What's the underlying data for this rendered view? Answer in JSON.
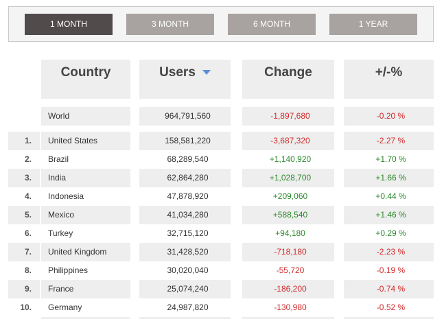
{
  "tabs": [
    {
      "label": "1 MONTH",
      "active": true
    },
    {
      "label": "3 MONTH",
      "active": false
    },
    {
      "label": "6 MONTH",
      "active": false
    },
    {
      "label": "1 YEAR",
      "active": false
    }
  ],
  "columns": {
    "country": "Country",
    "users": "Users",
    "change": "Change",
    "pct": "+/-%"
  },
  "world": {
    "country": "World",
    "users": "964,791,560",
    "change": "-1,897,680",
    "pct": "-0.20 %",
    "trend": "neg"
  },
  "rows": [
    {
      "rank": "1.",
      "country": "United States",
      "users": "158,581,220",
      "change": "-3,687,320",
      "pct": "-2.27 %",
      "trend": "neg"
    },
    {
      "rank": "2.",
      "country": "Brazil",
      "users": "68,289,540",
      "change": "+1,140,920",
      "pct": "+1.70 %",
      "trend": "pos"
    },
    {
      "rank": "3.",
      "country": "India",
      "users": "62,864,280",
      "change": "+1,028,700",
      "pct": "+1.66 %",
      "trend": "pos"
    },
    {
      "rank": "4.",
      "country": "Indonesia",
      "users": "47,878,920",
      "change": "+209,060",
      "pct": "+0.44 %",
      "trend": "pos"
    },
    {
      "rank": "5.",
      "country": "Mexico",
      "users": "41,034,280",
      "change": "+588,540",
      "pct": "+1.46 %",
      "trend": "pos"
    },
    {
      "rank": "6.",
      "country": "Turkey",
      "users": "32,715,120",
      "change": "+94,180",
      "pct": "+0.29 %",
      "trend": "pos"
    },
    {
      "rank": "7.",
      "country": "United Kingdom",
      "users": "31,428,520",
      "change": "-718,180",
      "pct": "-2.23 %",
      "trend": "neg"
    },
    {
      "rank": "8.",
      "country": "Philippines",
      "users": "30,020,040",
      "change": "-55,720",
      "pct": "-0.19 %",
      "trend": "neg"
    },
    {
      "rank": "9.",
      "country": "France",
      "users": "25,074,240",
      "change": "-186,200",
      "pct": "-0.74 %",
      "trend": "neg"
    },
    {
      "rank": "10.",
      "country": "Germany",
      "users": "24,987,820",
      "change": "-130,980",
      "pct": "-0.52 %",
      "trend": "neg"
    }
  ],
  "colors": {
    "positive": "#2c8a2c",
    "negative": "#d12b2b",
    "active_tab": "#524b4b",
    "inactive_tab": "#a8a2a0",
    "sort_arrow": "#5b8fd6"
  },
  "icons": {
    "sort": "sort-descending-icon"
  }
}
